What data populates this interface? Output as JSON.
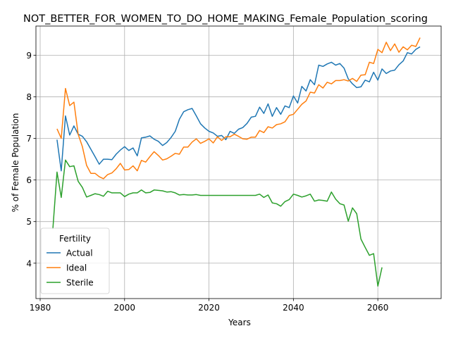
{
  "chart_data": {
    "type": "line",
    "title": "NOT_BETTER_FOR_WOMEN_TO_DO_HOME_MAKING_Female_Population_scoring",
    "xlabel": "Years",
    "ylabel": "% of Female Population",
    "xlim": [
      1979,
      2075
    ],
    "ylim": [
      3.15,
      9.7
    ],
    "xticks": [
      1980,
      2000,
      2020,
      2040,
      2060
    ],
    "yticks": [
      4,
      5,
      6,
      7,
      8,
      9
    ],
    "grid": true,
    "legend": {
      "title": "Fertility",
      "placement": "lower-left"
    },
    "series": [
      {
        "name": "Actual",
        "color": "#1f77b4",
        "points": [
          [
            1984,
            6.97
          ],
          [
            1985,
            6.22
          ],
          [
            1986,
            7.54
          ],
          [
            1987,
            7.08
          ],
          [
            1988,
            7.3
          ],
          [
            1989,
            7.1
          ],
          [
            1990,
            7.05
          ],
          [
            1991,
            6.92
          ],
          [
            1992,
            6.74
          ],
          [
            1993,
            6.56
          ],
          [
            1994,
            6.38
          ],
          [
            1995,
            6.5
          ],
          [
            1996,
            6.5
          ],
          [
            1997,
            6.49
          ],
          [
            1998,
            6.62
          ],
          [
            1999,
            6.72
          ],
          [
            2000,
            6.8
          ],
          [
            2001,
            6.71
          ],
          [
            2002,
            6.77
          ],
          [
            2003,
            6.58
          ],
          [
            2004,
            7.01
          ],
          [
            2005,
            7.03
          ],
          [
            2006,
            7.06
          ],
          [
            2007,
            6.98
          ],
          [
            2008,
            6.93
          ],
          [
            2009,
            6.83
          ],
          [
            2010,
            6.9
          ],
          [
            2011,
            7.02
          ],
          [
            2012,
            7.17
          ],
          [
            2013,
            7.46
          ],
          [
            2014,
            7.64
          ],
          [
            2015,
            7.69
          ],
          [
            2016,
            7.72
          ],
          [
            2017,
            7.54
          ],
          [
            2018,
            7.35
          ],
          [
            2019,
            7.25
          ],
          [
            2020,
            7.17
          ],
          [
            2021,
            7.13
          ],
          [
            2022,
            7.05
          ],
          [
            2023,
            7.07
          ],
          [
            2024,
            6.97
          ],
          [
            2025,
            7.17
          ],
          [
            2026,
            7.12
          ],
          [
            2027,
            7.22
          ],
          [
            2028,
            7.26
          ],
          [
            2029,
            7.36
          ],
          [
            2030,
            7.51
          ],
          [
            2031,
            7.53
          ],
          [
            2032,
            7.75
          ],
          [
            2033,
            7.6
          ],
          [
            2034,
            7.83
          ],
          [
            2035,
            7.53
          ],
          [
            2036,
            7.74
          ],
          [
            2037,
            7.58
          ],
          [
            2038,
            7.78
          ],
          [
            2039,
            7.74
          ],
          [
            2040,
            8.02
          ],
          [
            2041,
            7.85
          ],
          [
            2042,
            8.25
          ],
          [
            2043,
            8.14
          ],
          [
            2044,
            8.41
          ],
          [
            2045,
            8.29
          ],
          [
            2046,
            8.76
          ],
          [
            2047,
            8.73
          ],
          [
            2048,
            8.79
          ],
          [
            2049,
            8.83
          ],
          [
            2050,
            8.76
          ],
          [
            2051,
            8.8
          ],
          [
            2052,
            8.69
          ],
          [
            2053,
            8.43
          ],
          [
            2054,
            8.31
          ],
          [
            2055,
            8.22
          ],
          [
            2056,
            8.24
          ],
          [
            2057,
            8.4
          ],
          [
            2058,
            8.36
          ],
          [
            2059,
            8.59
          ],
          [
            2060,
            8.4
          ],
          [
            2061,
            8.67
          ],
          [
            2062,
            8.56
          ],
          [
            2063,
            8.62
          ],
          [
            2064,
            8.64
          ],
          [
            2065,
            8.77
          ],
          [
            2066,
            8.86
          ],
          [
            2067,
            9.06
          ],
          [
            2068,
            9.03
          ],
          [
            2069,
            9.14
          ],
          [
            2070,
            9.2
          ]
        ]
      },
      {
        "name": "Ideal",
        "color": "#ff7f0e",
        "points": [
          [
            1984,
            7.23
          ],
          [
            1985,
            7.0
          ],
          [
            1986,
            8.2
          ],
          [
            1987,
            7.79
          ],
          [
            1988,
            7.87
          ],
          [
            1989,
            7.1
          ],
          [
            1990,
            6.8
          ],
          [
            1991,
            6.35
          ],
          [
            1992,
            6.16
          ],
          [
            1993,
            6.16
          ],
          [
            1994,
            6.08
          ],
          [
            1995,
            6.03
          ],
          [
            1996,
            6.13
          ],
          [
            1997,
            6.17
          ],
          [
            1998,
            6.27
          ],
          [
            1999,
            6.4
          ],
          [
            2000,
            6.24
          ],
          [
            2001,
            6.25
          ],
          [
            2002,
            6.34
          ],
          [
            2003,
            6.22
          ],
          [
            2004,
            6.47
          ],
          [
            2005,
            6.43
          ],
          [
            2006,
            6.56
          ],
          [
            2007,
            6.68
          ],
          [
            2008,
            6.59
          ],
          [
            2009,
            6.48
          ],
          [
            2010,
            6.51
          ],
          [
            2011,
            6.57
          ],
          [
            2012,
            6.64
          ],
          [
            2013,
            6.62
          ],
          [
            2014,
            6.79
          ],
          [
            2015,
            6.79
          ],
          [
            2016,
            6.91
          ],
          [
            2017,
            6.99
          ],
          [
            2018,
            6.88
          ],
          [
            2019,
            6.93
          ],
          [
            2020,
            6.99
          ],
          [
            2021,
            6.89
          ],
          [
            2022,
            7.04
          ],
          [
            2023,
            6.95
          ],
          [
            2024,
            7.04
          ],
          [
            2025,
            7.04
          ],
          [
            2026,
            7.1
          ],
          [
            2027,
            7.05
          ],
          [
            2028,
            6.99
          ],
          [
            2029,
            6.98
          ],
          [
            2030,
            7.03
          ],
          [
            2031,
            7.03
          ],
          [
            2032,
            7.19
          ],
          [
            2033,
            7.14
          ],
          [
            2034,
            7.28
          ],
          [
            2035,
            7.25
          ],
          [
            2036,
            7.33
          ],
          [
            2037,
            7.35
          ],
          [
            2038,
            7.4
          ],
          [
            2039,
            7.55
          ],
          [
            2040,
            7.58
          ],
          [
            2041,
            7.7
          ],
          [
            2042,
            7.82
          ],
          [
            2043,
            7.9
          ],
          [
            2044,
            8.11
          ],
          [
            2045,
            8.09
          ],
          [
            2046,
            8.29
          ],
          [
            2047,
            8.21
          ],
          [
            2048,
            8.35
          ],
          [
            2049,
            8.31
          ],
          [
            2050,
            8.39
          ],
          [
            2051,
            8.39
          ],
          [
            2052,
            8.41
          ],
          [
            2053,
            8.38
          ],
          [
            2054,
            8.44
          ],
          [
            2055,
            8.37
          ],
          [
            2056,
            8.52
          ],
          [
            2057,
            8.53
          ],
          [
            2058,
            8.83
          ],
          [
            2059,
            8.8
          ],
          [
            2060,
            9.14
          ],
          [
            2061,
            9.06
          ],
          [
            2062,
            9.31
          ],
          [
            2063,
            9.11
          ],
          [
            2064,
            9.27
          ],
          [
            2065,
            9.07
          ],
          [
            2066,
            9.2
          ],
          [
            2067,
            9.13
          ],
          [
            2068,
            9.24
          ],
          [
            2069,
            9.21
          ],
          [
            2070,
            9.42
          ]
        ]
      },
      {
        "name": "Sterile",
        "color": "#2ca02c",
        "points": [
          [
            1983,
            4.82
          ],
          [
            1984,
            6.19
          ],
          [
            1985,
            5.58
          ],
          [
            1986,
            6.48
          ],
          [
            1987,
            6.32
          ],
          [
            1988,
            6.34
          ],
          [
            1989,
            5.97
          ],
          [
            1990,
            5.82
          ],
          [
            1991,
            5.59
          ],
          [
            1992,
            5.63
          ],
          [
            1993,
            5.67
          ],
          [
            1994,
            5.65
          ],
          [
            1995,
            5.61
          ],
          [
            1996,
            5.73
          ],
          [
            1997,
            5.69
          ],
          [
            1998,
            5.69
          ],
          [
            1999,
            5.69
          ],
          [
            2000,
            5.6
          ],
          [
            2001,
            5.66
          ],
          [
            2002,
            5.69
          ],
          [
            2003,
            5.69
          ],
          [
            2004,
            5.76
          ],
          [
            2005,
            5.69
          ],
          [
            2006,
            5.7
          ],
          [
            2007,
            5.76
          ],
          [
            2008,
            5.75
          ],
          [
            2009,
            5.74
          ],
          [
            2010,
            5.71
          ],
          [
            2011,
            5.72
          ],
          [
            2012,
            5.69
          ],
          [
            2013,
            5.64
          ],
          [
            2014,
            5.65
          ],
          [
            2015,
            5.64
          ],
          [
            2016,
            5.64
          ],
          [
            2017,
            5.65
          ],
          [
            2018,
            5.63
          ],
          [
            2019,
            5.63
          ],
          [
            2020,
            5.63
          ],
          [
            2021,
            5.63
          ],
          [
            2022,
            5.63
          ],
          [
            2023,
            5.63
          ],
          [
            2024,
            5.63
          ],
          [
            2025,
            5.63
          ],
          [
            2026,
            5.63
          ],
          [
            2027,
            5.63
          ],
          [
            2028,
            5.63
          ],
          [
            2029,
            5.63
          ],
          [
            2030,
            5.63
          ],
          [
            2031,
            5.63
          ],
          [
            2032,
            5.66
          ],
          [
            2033,
            5.58
          ],
          [
            2034,
            5.64
          ],
          [
            2035,
            5.45
          ],
          [
            2036,
            5.43
          ],
          [
            2037,
            5.37
          ],
          [
            2038,
            5.48
          ],
          [
            2039,
            5.53
          ],
          [
            2040,
            5.66
          ],
          [
            2041,
            5.63
          ],
          [
            2042,
            5.59
          ],
          [
            2043,
            5.62
          ],
          [
            2044,
            5.66
          ],
          [
            2045,
            5.49
          ],
          [
            2046,
            5.52
          ],
          [
            2047,
            5.51
          ],
          [
            2048,
            5.49
          ],
          [
            2049,
            5.71
          ],
          [
            2050,
            5.54
          ],
          [
            2051,
            5.43
          ],
          [
            2052,
            5.4
          ],
          [
            2053,
            5.01
          ],
          [
            2054,
            5.33
          ],
          [
            2055,
            5.19
          ],
          [
            2056,
            4.58
          ],
          [
            2057,
            4.38
          ],
          [
            2058,
            4.19
          ],
          [
            2059,
            4.23
          ],
          [
            2060,
            3.45
          ],
          [
            2061,
            3.9
          ]
        ]
      }
    ]
  }
}
